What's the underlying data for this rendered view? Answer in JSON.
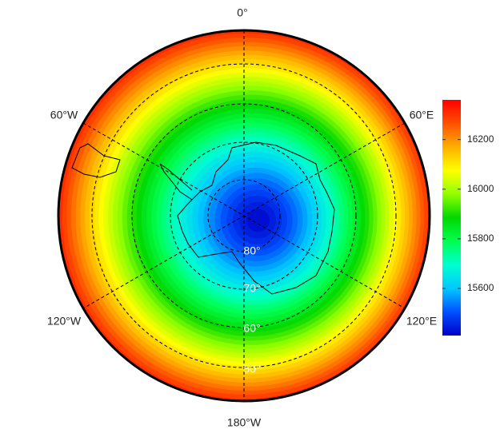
{
  "map": {
    "longitude_labels": [
      "0°",
      "60°E",
      "120°E",
      "180°W",
      "120°W",
      "60°W"
    ],
    "latitude_labels": [
      "80°",
      "70°",
      "60°",
      "50°"
    ]
  },
  "colorbar": {
    "lim": [
      15410,
      16360
    ],
    "ticks": [
      15600,
      15800,
      16000,
      16200
    ],
    "colormap": [
      "#0000c8",
      "#0050ff",
      "#00c8ff",
      "#00ffd0",
      "#00ff50",
      "#00d800",
      "#90ff00",
      "#ffff00",
      "#ffb000",
      "#ff5000",
      "#ff0000"
    ]
  }
}
